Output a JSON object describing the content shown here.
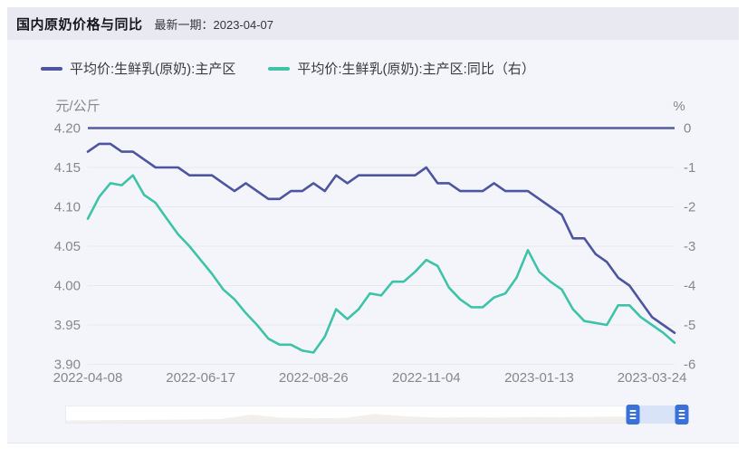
{
  "header": {
    "title": "国内原奶价格与同比",
    "subtitle": "最新一期：2023-04-07"
  },
  "legend": [
    {
      "label": "平均价:生鲜乳(原奶):主产区",
      "color": "#4e55a0"
    },
    {
      "label": "平均价:生鲜乳(原奶):主产区:同比（右）",
      "color": "#3fc3a8"
    }
  ],
  "colors": {
    "page_bg": "#ffffff",
    "card_bg": "#f4f5fa",
    "header_bg": "#e9eaf1",
    "grid_line": "#e7e8f0",
    "axis_text": "#85878f",
    "price_line": "#4e55a0",
    "yoy_line": "#3fc3a8",
    "zero_line": "#565b9b",
    "datazoom_handle": "#3a70d9",
    "datazoom_selection": "#d9e3f7",
    "datazoom_silhouette": "#f2efed"
  },
  "chart_data": {
    "type": "line",
    "x": [
      "2022-04-08",
      "2022-04-15",
      "2022-04-22",
      "2022-04-29",
      "2022-05-06",
      "2022-05-13",
      "2022-05-20",
      "2022-05-27",
      "2022-06-03",
      "2022-06-10",
      "2022-06-17",
      "2022-06-24",
      "2022-07-01",
      "2022-07-08",
      "2022-07-15",
      "2022-07-22",
      "2022-07-29",
      "2022-08-05",
      "2022-08-12",
      "2022-08-19",
      "2022-08-26",
      "2022-09-02",
      "2022-09-09",
      "2022-09-16",
      "2022-09-23",
      "2022-09-30",
      "2022-10-07",
      "2022-10-14",
      "2022-10-21",
      "2022-10-28",
      "2022-11-04",
      "2022-11-11",
      "2022-11-18",
      "2022-11-25",
      "2022-12-02",
      "2022-12-09",
      "2022-12-16",
      "2022-12-23",
      "2022-12-30",
      "2023-01-06",
      "2023-01-13",
      "2023-01-20",
      "2023-01-27",
      "2023-02-03",
      "2023-02-10",
      "2023-02-17",
      "2023-02-24",
      "2023-03-03",
      "2023-03-10",
      "2023-03-17",
      "2023-03-24",
      "2023-03-31",
      "2023-04-07"
    ],
    "x_tick_indices": [
      0,
      10,
      20,
      30,
      40,
      50
    ],
    "x_tick_labels": [
      "2022-04-08",
      "2022-06-17",
      "2022-08-26",
      "2022-11-04",
      "2023-01-13",
      "2023-03-24"
    ],
    "series": [
      {
        "name": "平均价:生鲜乳(原奶):主产区",
        "axis": "left",
        "color": "#4e55a0",
        "values": [
          4.17,
          4.18,
          4.18,
          4.17,
          4.17,
          4.16,
          4.15,
          4.15,
          4.15,
          4.14,
          4.14,
          4.14,
          4.13,
          4.12,
          4.13,
          4.12,
          4.11,
          4.11,
          4.12,
          4.12,
          4.13,
          4.12,
          4.14,
          4.13,
          4.14,
          4.14,
          4.14,
          4.14,
          4.14,
          4.14,
          4.15,
          4.13,
          4.13,
          4.12,
          4.12,
          4.12,
          4.13,
          4.12,
          4.12,
          4.12,
          4.11,
          4.1,
          4.09,
          4.06,
          4.06,
          4.04,
          4.03,
          4.01,
          4.0,
          3.98,
          3.96,
          3.95,
          3.94
        ]
      },
      {
        "name": "平均价:生鲜乳(原奶):主产区:同比（右）",
        "axis": "right",
        "color": "#3fc3a8",
        "values": [
          -2.3,
          -1.75,
          -1.4,
          -1.45,
          -1.2,
          -1.7,
          -1.9,
          -2.3,
          -2.7,
          -3.0,
          -3.35,
          -3.7,
          -4.1,
          -4.35,
          -4.7,
          -5.0,
          -5.35,
          -5.5,
          -5.5,
          -5.65,
          -5.7,
          -5.3,
          -4.6,
          -4.85,
          -4.6,
          -4.2,
          -4.25,
          -3.9,
          -3.9,
          -3.65,
          -3.35,
          -3.5,
          -4.05,
          -4.35,
          -4.55,
          -4.55,
          -4.3,
          -4.2,
          -3.8,
          -3.1,
          -3.65,
          -3.9,
          -4.1,
          -4.6,
          -4.9,
          -4.95,
          -5.0,
          -4.5,
          -4.5,
          -4.8,
          -5.0,
          -5.2,
          -5.45
        ]
      }
    ],
    "left_axis": {
      "unit": "元/公斤",
      "min": 3.9,
      "max": 4.2,
      "ticks": [
        "4.20",
        "4.15",
        "4.10",
        "4.05",
        "4.00",
        "3.95",
        "3.90"
      ]
    },
    "right_axis": {
      "unit": "%",
      "min": -6,
      "max": 0,
      "ticks": [
        "0",
        "-1",
        "-2",
        "-3",
        "-4",
        "-5",
        "-6"
      ]
    },
    "zero_line_value": 0,
    "grid": true,
    "legend_position": "top",
    "title": "国内原奶价格与同比"
  },
  "datazoom": {
    "window_start_pct": 91.8,
    "window_end_pct": 99.7,
    "silhouette": [
      0.18,
      0.2,
      0.22,
      0.24,
      0.26,
      0.3,
      0.66,
      0.4,
      0.36,
      0.38,
      0.72,
      0.52,
      0.42,
      0.44,
      0.42,
      0.46,
      0.44,
      0.48,
      0.5,
      0.4,
      0.32
    ]
  }
}
